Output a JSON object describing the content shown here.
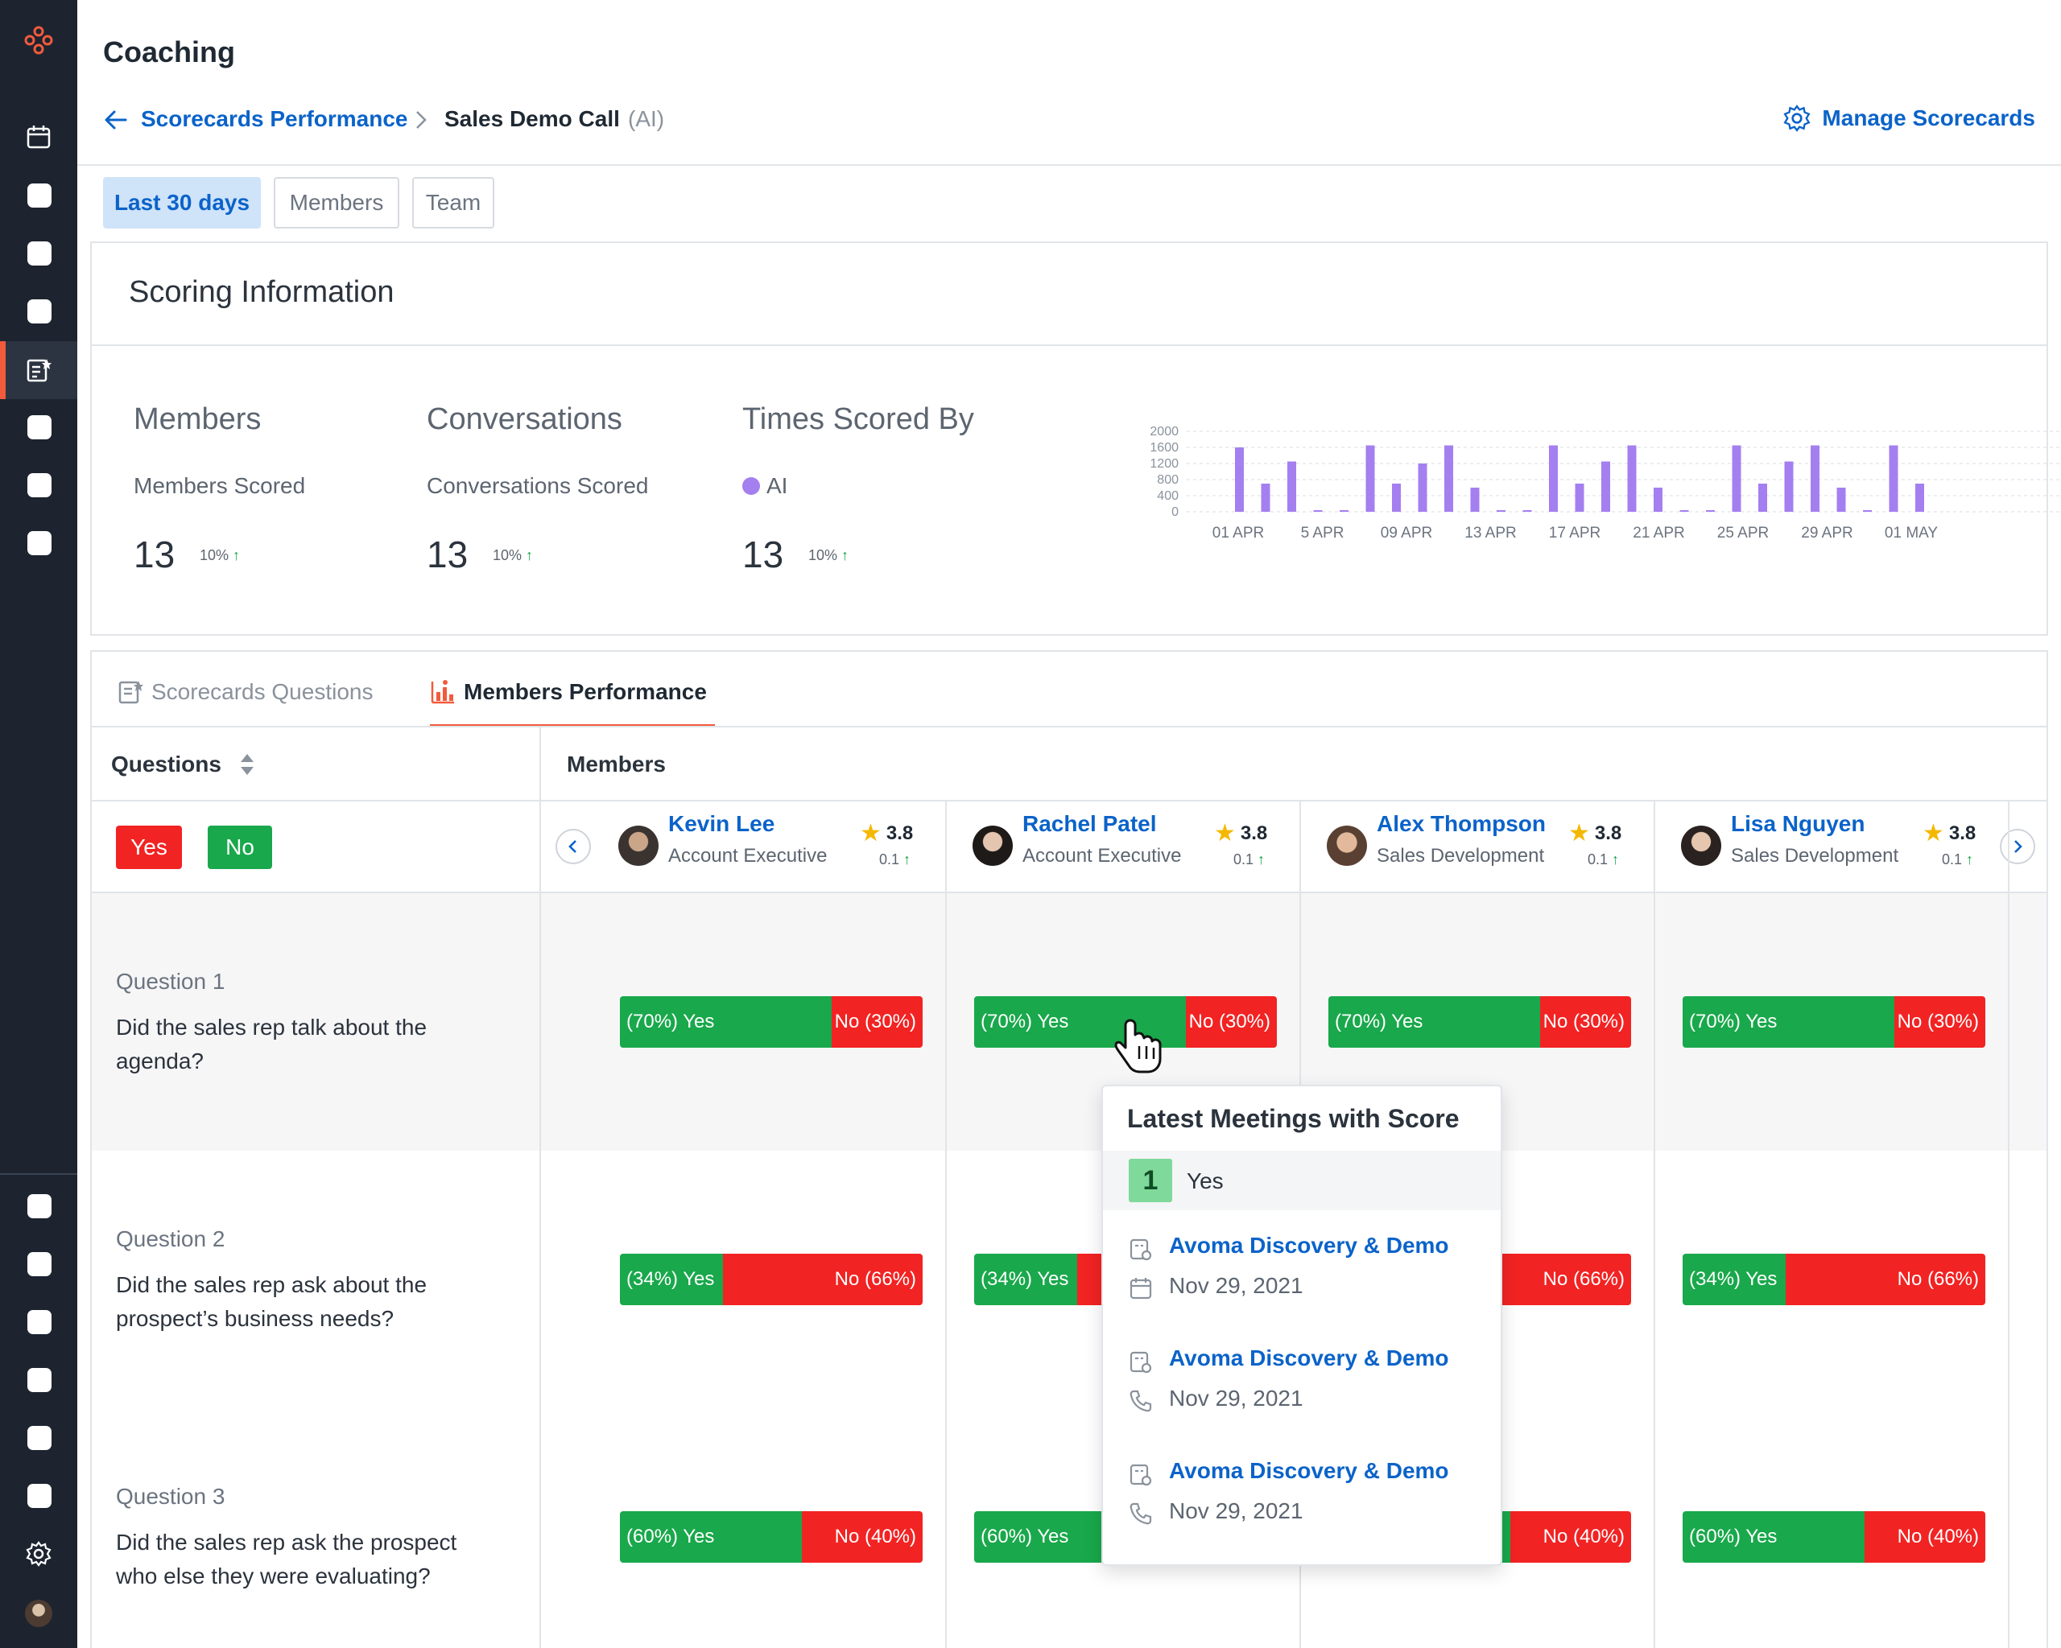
{
  "app": {
    "title": "Coaching"
  },
  "breadcrumb": {
    "parent": "Scorecards Performance",
    "current": "Sales Demo Call",
    "tag": "(AI)"
  },
  "manage_label": "Manage Scorecards",
  "filters": [
    {
      "label": "Last 30 days",
      "active": true
    },
    {
      "label": "Members",
      "active": false
    },
    {
      "label": "Team",
      "active": false
    }
  ],
  "scoring": {
    "title": "Scoring Information",
    "stats": [
      {
        "heading": "Members",
        "sub": "Members Scored",
        "value": "13",
        "delta": "10%"
      },
      {
        "heading": "Conversations",
        "sub": "Conversations Scored",
        "value": "13",
        "delta": "10%"
      },
      {
        "heading": "Times Scored By",
        "sub": "AI",
        "value": "13",
        "delta": "10%"
      }
    ]
  },
  "chart_data": {
    "type": "bar",
    "y_ticks": [
      "2000",
      "1600",
      "1200",
      "800",
      "400",
      "0"
    ],
    "ylim": [
      0,
      2000
    ],
    "x_tick_labels": [
      "01 APR",
      "5 APR",
      "09 APR",
      "13 APR",
      "17 APR",
      "21 APR",
      "25 APR",
      "29 APR",
      "01 MAY"
    ],
    "values": [
      1600,
      700,
      1250,
      40,
      40,
      1650,
      700,
      1200,
      1650,
      600,
      40,
      40,
      1650,
      700,
      1250,
      1650,
      600,
      40,
      40,
      1650,
      700,
      1250,
      1650,
      600,
      40,
      1650,
      700
    ],
    "color": "#a47ff0",
    "grid": true
  },
  "tabs": [
    {
      "label": "Scorecards Questions",
      "active": false
    },
    {
      "label": "Members Performance",
      "active": true
    }
  ],
  "table": {
    "col_questions": "Questions",
    "col_members": "Members",
    "legend": {
      "yes": "Yes",
      "no": "No"
    },
    "members": [
      {
        "name": "Kevin Lee",
        "role": "Account Executive",
        "rating": "3.8",
        "delta": "0.1"
      },
      {
        "name": "Rachel Patel",
        "role": "Account Executive",
        "rating": "3.8",
        "delta": "0.1"
      },
      {
        "name": "Alex Thompson",
        "role": "Sales Development",
        "rating": "3.8",
        "delta": "0.1"
      },
      {
        "name": "Lisa Nguyen",
        "role": "Sales Development",
        "rating": "3.8",
        "delta": "0.1"
      }
    ],
    "questions": [
      {
        "label": "Question 1",
        "text": "Did the sales rep talk about the agenda?",
        "yes_pct": 70,
        "yes_text": "(70%) Yes",
        "no_text": "No (30%)"
      },
      {
        "label": "Question 2",
        "text": "Did the sales rep ask about the prospect’s business needs?",
        "yes_pct": 34,
        "yes_text": "(34%) Yes",
        "no_text": "No (66%)"
      },
      {
        "label": "Question 3",
        "text": "Did the sales rep ask the prospect who else they were evaluating?",
        "yes_pct": 60,
        "yes_text": "(60%) Yes",
        "no_text": "No (40%)"
      }
    ]
  },
  "popover": {
    "title": "Latest Meetings with Score",
    "count": "1",
    "count_label": "Yes",
    "meetings": [
      {
        "title": "Avoma Discovery & Demo",
        "date": "Nov 29, 2021",
        "icon": "calendar-icon"
      },
      {
        "title": "Avoma Discovery & Demo",
        "date": "Nov 29, 2021",
        "icon": "phone-icon"
      },
      {
        "title": "Avoma Discovery & Demo",
        "date": "Nov 29, 2021",
        "icon": "phone-icon"
      }
    ]
  },
  "colors": {
    "accent": "#0b63c9",
    "brand": "#f25a3c",
    "yes": "#19a84b",
    "no": "#f22323",
    "chart": "#a47ff0"
  }
}
